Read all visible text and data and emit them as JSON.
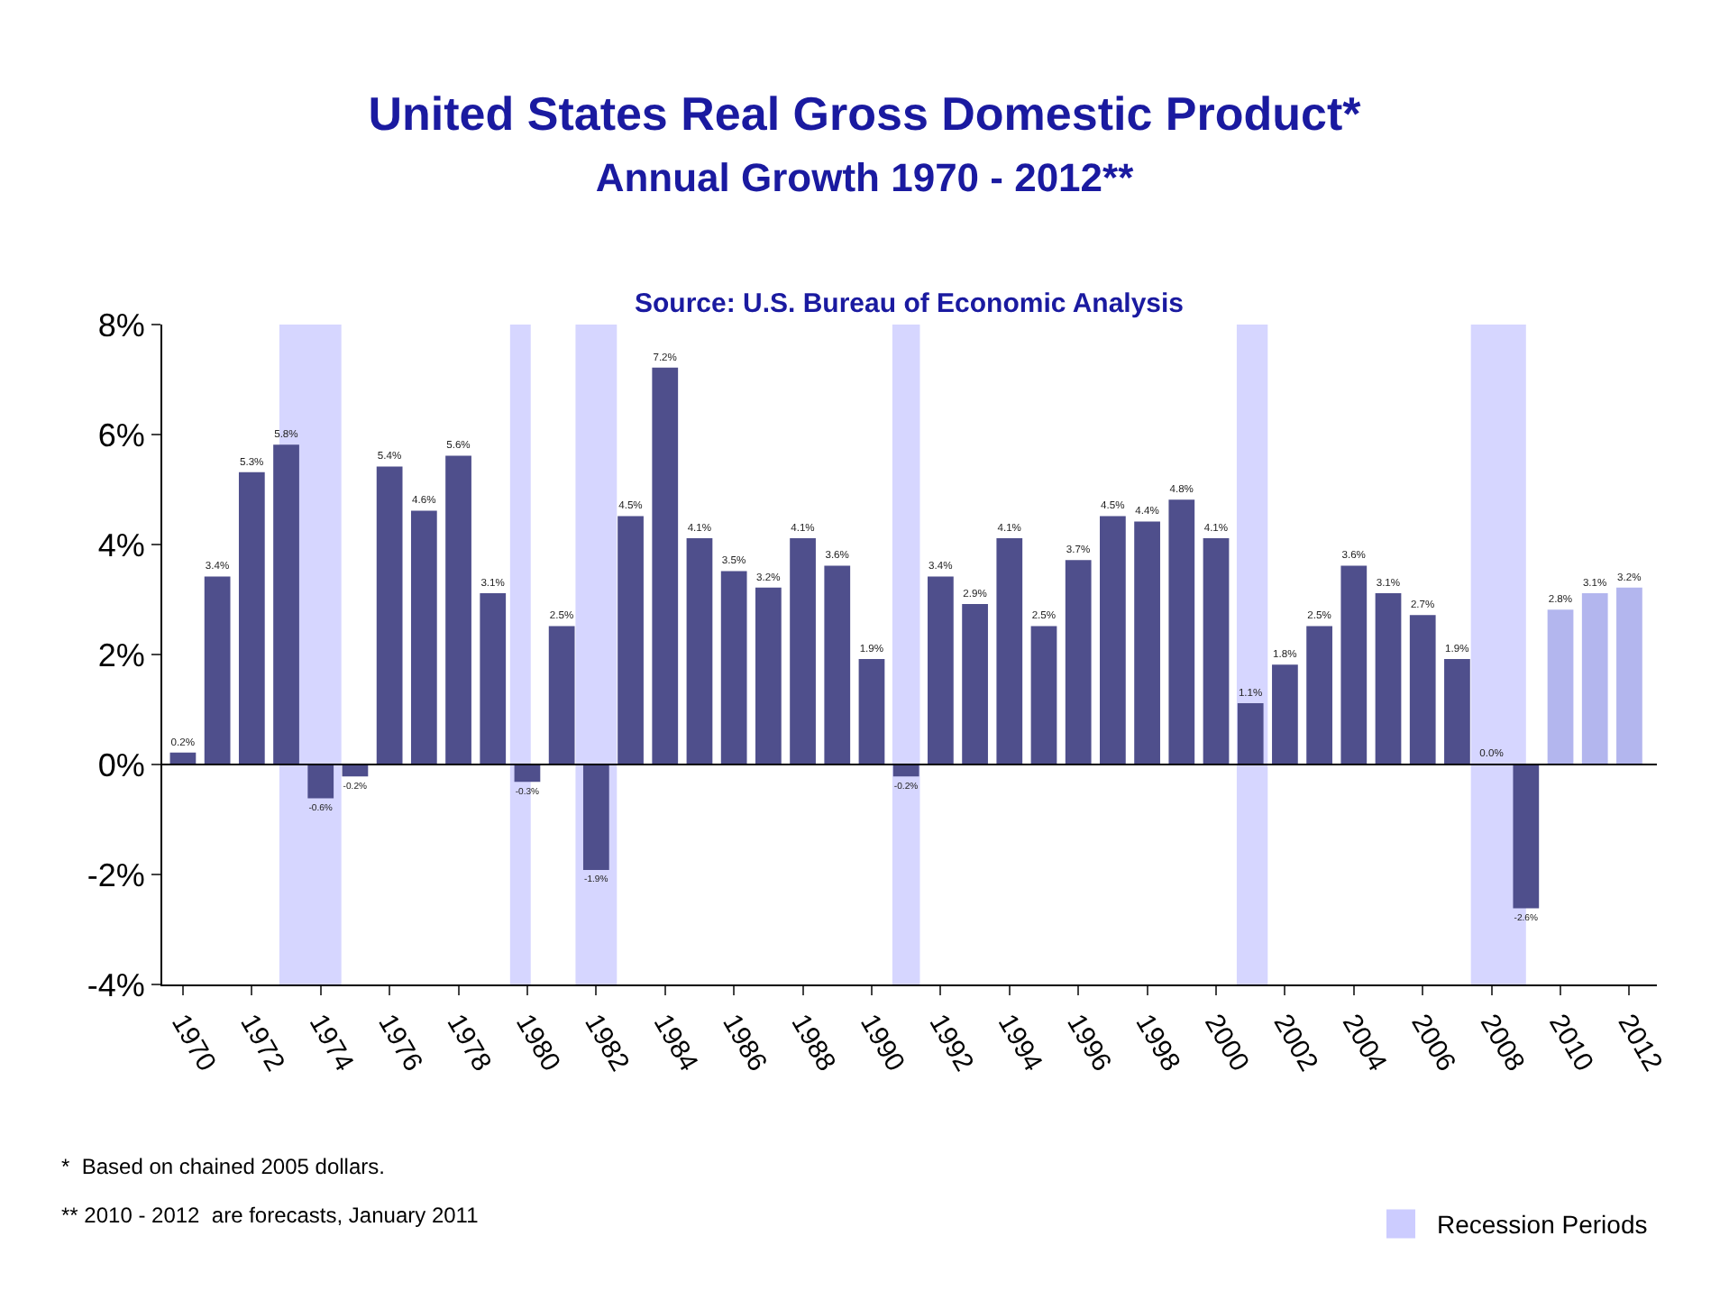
{
  "chart_data": {
    "type": "bar",
    "title": "United States Real Gross Domestic Product*",
    "subtitle": "Annual Growth 1970 - 2012**",
    "annotations": [
      "Source: U.S. Bureau of Economic Analysis",
      "*  Based on chained 2005 dollars.",
      "** 2010 - 2012  are forecasts, January 2011"
    ],
    "x": [
      1970,
      1971,
      1972,
      1973,
      1974,
      1975,
      1976,
      1977,
      1978,
      1979,
      1980,
      1981,
      1982,
      1983,
      1984,
      1985,
      1986,
      1987,
      1988,
      1989,
      1990,
      1991,
      1992,
      1993,
      1994,
      1995,
      1996,
      1997,
      1998,
      1999,
      2000,
      2001,
      2002,
      2003,
      2004,
      2005,
      2006,
      2007,
      2008,
      2009,
      2010,
      2011,
      2012
    ],
    "values": [
      0.2,
      3.4,
      5.3,
      5.8,
      -0.6,
      -0.2,
      5.4,
      4.6,
      5.6,
      3.1,
      -0.3,
      2.5,
      -1.9,
      4.5,
      7.2,
      4.1,
      3.5,
      3.2,
      4.1,
      3.6,
      1.9,
      -0.2,
      3.4,
      2.9,
      4.1,
      2.5,
      3.7,
      4.5,
      4.4,
      4.8,
      4.1,
      1.1,
      1.8,
      2.5,
      3.6,
      3.1,
      2.7,
      1.9,
      0.0,
      -2.6,
      2.8,
      3.1,
      3.2
    ],
    "value_labels": [
      "0.2%",
      "3.4%",
      "5.3%",
      "5.8%",
      "-0.6%",
      "-0.2%",
      "5.4%",
      "4.6%",
      "5.6%",
      "3.1%",
      "-0.3%",
      "2.5%",
      "-1.9%",
      "4.5%",
      "7.2%",
      "4.1%",
      "3.5%",
      "3.2%",
      "4.1%",
      "3.6%",
      "1.9%",
      "-0.2%",
      "3.4%",
      "2.9%",
      "4.1%",
      "2.5%",
      "3.7%",
      "4.5%",
      "4.4%",
      "4.8%",
      "4.1%",
      "1.1%",
      "1.8%",
      "2.5%",
      "3.6%",
      "3.1%",
      "2.7%",
      "1.9%",
      "0.0%",
      "-2.6%",
      "2.8%",
      "3.1%",
      "3.2%"
    ],
    "colors": [
      "#4f4f8c",
      "#4f4f8c",
      "#4f4f8c",
      "#4f4f8c",
      "#4f4f8c",
      "#4f4f8c",
      "#4f4f8c",
      "#4f4f8c",
      "#4f4f8c",
      "#4f4f8c",
      "#4f4f8c",
      "#4f4f8c",
      "#4f4f8c",
      "#4f4f8c",
      "#4f4f8c",
      "#4f4f8c",
      "#4f4f8c",
      "#4f4f8c",
      "#4f4f8c",
      "#4f4f8c",
      "#4f4f8c",
      "#4f4f8c",
      "#4f4f8c",
      "#4f4f8c",
      "#4f4f8c",
      "#4f4f8c",
      "#4f4f8c",
      "#4f4f8c",
      "#4f4f8c",
      "#4f4f8c",
      "#4f4f8c",
      "#4f4f8c",
      "#4f4f8c",
      "#4f4f8c",
      "#4f4f8c",
      "#4f4f8c",
      "#4f4f8c",
      "#4f4f8c",
      "#4f4f8c",
      "#4f4f8c",
      "#b3b6ee",
      "#b3b6ee",
      "#b3b6ee"
    ],
    "xlim": [
      1969.4,
      2012.8
    ],
    "xticks": [
      1970,
      1972,
      1974,
      1976,
      1978,
      1980,
      1982,
      1984,
      1986,
      1988,
      1990,
      1992,
      1994,
      1996,
      1998,
      2000,
      2002,
      2004,
      2006,
      2008,
      2010,
      2012
    ],
    "ylim": [
      -4,
      8
    ],
    "yticks": [
      {
        "value": -4,
        "label": "-4%"
      },
      {
        "value": -2,
        "label": "-2%"
      },
      {
        "value": 0,
        "label": "0%"
      },
      {
        "value": 2,
        "label": "2%"
      },
      {
        "value": 4,
        "label": "4%"
      },
      {
        "value": 6,
        "label": "6%"
      },
      {
        "value": 8,
        "label": "8%"
      }
    ],
    "bands": [
      {
        "axis": "x",
        "from": 1972.8,
        "to": 1974.6,
        "color": "#ccccff",
        "label": "Recession Periods"
      },
      {
        "axis": "x",
        "from": 1979.5,
        "to": 1980.1,
        "color": "#ccccff"
      },
      {
        "axis": "x",
        "from": 1981.4,
        "to": 1982.6,
        "color": "#ccccff"
      },
      {
        "axis": "x",
        "from": 1990.6,
        "to": 1991.4,
        "color": "#ccccff"
      },
      {
        "axis": "x",
        "from": 2000.6,
        "to": 2001.5,
        "color": "#ccccff"
      },
      {
        "axis": "x",
        "from": 2007.4,
        "to": 2009.0,
        "color": "#ccccff"
      }
    ],
    "ref_lines": [
      {
        "axis": "y",
        "value": 0,
        "color": "#000000"
      }
    ],
    "grid": false,
    "legend": "bottom right"
  }
}
